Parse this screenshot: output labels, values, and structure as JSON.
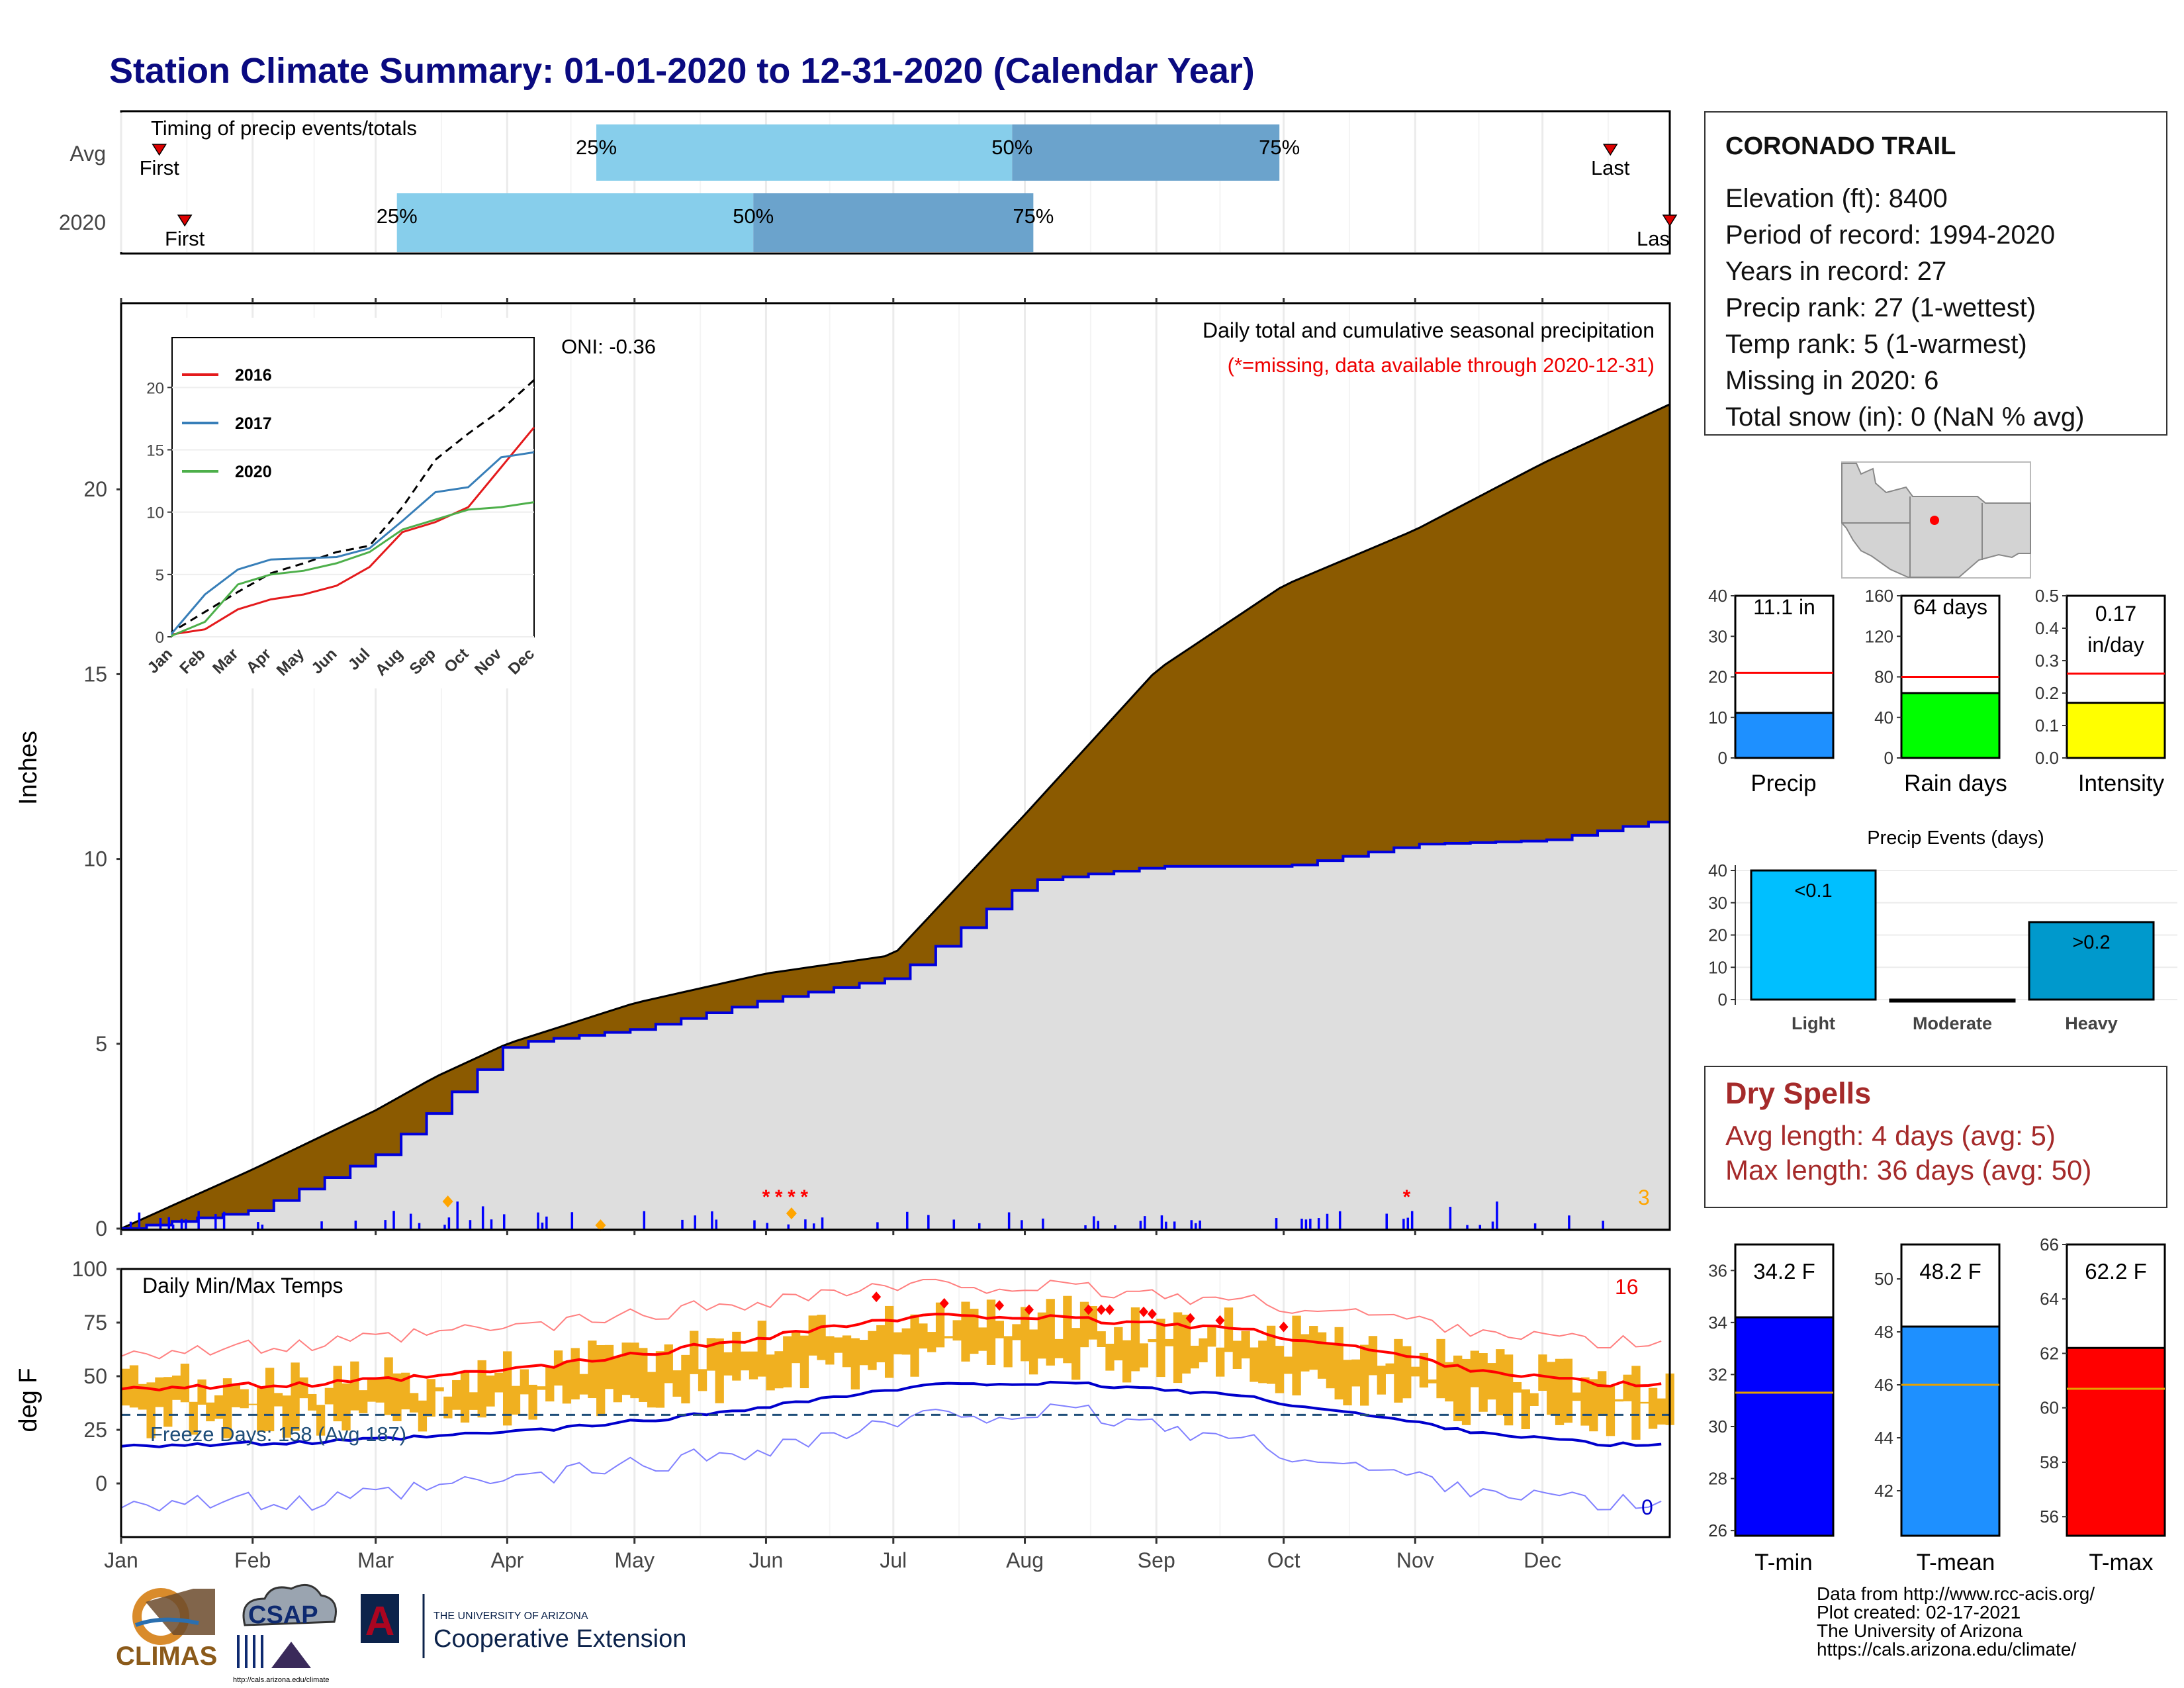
{
  "title": "Station Climate Summary: 01-01-2020 to 12-31-2020 (Calendar Year)",
  "station": {
    "name": "CORONADO TRAIL",
    "rows": [
      "Elevation (ft): 8400",
      "Period of record: 1994-2020",
      "Years in record: 27",
      "Precip rank: 27 (1-wettest)",
      "Temp rank: 5 (1-warmest)",
      "Missing in 2020: 6",
      "Total snow (in): 0 (NaN % avg)"
    ]
  },
  "timing": {
    "title": "Timing of precip events/totals",
    "first_label": "First",
    "last_label": "Last",
    "last_label_clipped": "Las",
    "p25": "25%",
    "p50": "50%",
    "p75": "75%",
    "colors": {
      "light": "#87ceeb",
      "dark": "#6ba3cc",
      "marker": "#dd0000"
    }
  },
  "month_labels": [
    "Jan",
    "Feb",
    "Mar",
    "Apr",
    "May",
    "Jun",
    "Jul",
    "Aug",
    "Sep",
    "Oct",
    "Nov",
    "Dec"
  ],
  "precip_panel": {
    "ylabel": "Inches",
    "subtitle1": "Daily total and cumulative seasonal precipitation",
    "subtitle2": "(*=missing, data available through 2020-12-31)",
    "oni": "ONI: -0.36",
    "corner_count": "3",
    "colors": {
      "avg_fill": "#8b5a00",
      "year_fill": "#dedede",
      "year_line": "#0000dd",
      "daily": "#0000ff",
      "missing": "#ff0000",
      "snow": "#ffa500"
    }
  },
  "inset": {
    "legend": [
      "2016",
      "2017",
      "2020"
    ],
    "colors": {
      "2016": "#e41a1c",
      "2017": "#377eb8",
      "2020": "#4daf4a"
    }
  },
  "temp_panel": {
    "ylabel": "deg F",
    "title": "Daily Min/Max Temps",
    "freeze_text": "Freeze Days: 158 (Avg 187)",
    "count_high": "16",
    "count_low": "0",
    "colors": {
      "bars": "#f0b020",
      "max_avg": "#ff0000",
      "min_avg": "#0000cc",
      "record_max": "#ff8080",
      "record_min": "#8080ff",
      "freeze_line": "#1f4e79"
    }
  },
  "mini_bars": {
    "precip": {
      "label": "Precip",
      "value_text": "11.1 in",
      "value": 11.1,
      "avg": 21,
      "ylim": [
        0,
        40
      ],
      "ticks": [
        "0",
        "10",
        "20",
        "30",
        "40"
      ],
      "color": "#1e90ff"
    },
    "rain_days": {
      "label": "Rain days",
      "value_text": "64 days",
      "value": 64,
      "avg": 80,
      "ylim": [
        0,
        160
      ],
      "ticks": [
        "0",
        "40",
        "80",
        "120",
        "160"
      ],
      "color": "#00ff00"
    },
    "intensity": {
      "label": "Intensity",
      "value_text1": "0.17",
      "value_text2": "in/day",
      "value": 0.17,
      "avg": 0.26,
      "ylim": [
        0,
        0.5
      ],
      "ticks": [
        "0.0",
        "0.1",
        "0.2",
        "0.3",
        "0.4",
        "0.5"
      ],
      "color": "#ffff00"
    }
  },
  "precip_events": {
    "title": "Precip Events (days)",
    "categories": [
      "Light",
      "Moderate",
      "Heavy"
    ],
    "values": [
      40,
      0,
      24
    ],
    "bar_labels": [
      "<0.1",
      "",
      ">0.2"
    ],
    "ticks": [
      "0",
      "10",
      "20",
      "30",
      "40"
    ],
    "colors": [
      "#00bfff",
      "#0080c0",
      "#0099cc"
    ]
  },
  "dry_spells": {
    "title": "Dry Spells",
    "avg": "Avg length: 4 days (avg: 5)",
    "max": "Max length: 36 days (avg: 50)"
  },
  "temp_bars": {
    "tmin": {
      "label": "T-min",
      "value_text": "34.2 F",
      "value": 34.2,
      "avg": 31.3,
      "ticks": [
        "26",
        "28",
        "30",
        "32",
        "34",
        "36"
      ],
      "ylim": [
        25.8,
        37
      ],
      "color": "#0000ff"
    },
    "tmean": {
      "label": "T-mean",
      "value_text": "48.2 F",
      "value": 48.2,
      "avg": 46,
      "ticks": [
        "42",
        "44",
        "46",
        "48",
        "50"
      ],
      "ylim": [
        40.3,
        51.3
      ],
      "color": "#1e90ff"
    },
    "tmax": {
      "label": "T-max",
      "value_text": "62.2 F",
      "value": 62.2,
      "avg": 60.7,
      "ticks": [
        "56",
        "58",
        "60",
        "62",
        "64",
        "66"
      ],
      "ylim": [
        55.3,
        66
      ],
      "color": "#ff0000"
    }
  },
  "footer": [
    "Data from http://www.rcc-acis.org/",
    "Plot created: 02-17-2021",
    "The University of Arizona",
    "https://cals.arizona.edu/climate/"
  ],
  "logos": {
    "climas": "CLIMAS",
    "csap": "CSAP",
    "csap_url": "http://cals.arizona.edu/climate",
    "ua_small": "THE UNIVERSITY OF ARIZONA",
    "ua_big": "Cooperative Extension",
    "ua_letter": "A"
  },
  "chart_data": [
    {
      "type": "bar",
      "title": "Timing of precip events/totals",
      "categories": [
        "Avg",
        "2020"
      ],
      "series": [
        {
          "name": "25%",
          "values": [
            "2020-04-22",
            "2020-03-06"
          ]
        },
        {
          "name": "50%",
          "values": [
            "2020-07-29",
            "2020-05-29"
          ]
        },
        {
          "name": "75%",
          "values": [
            "2020-09-30",
            "2020-08-03"
          ]
        }
      ],
      "first": [
        "2020-01-10",
        "2020-01-16"
      ],
      "last": [
        "2020-12-17",
        "2020-12-31"
      ]
    },
    {
      "type": "area",
      "title": "Daily total and cumulative seasonal precipitation",
      "ylabel": "Inches",
      "ylim": [
        0,
        25
      ],
      "x": [
        "2020-01-01",
        "2020-02-01",
        "2020-03-01",
        "2020-03-15",
        "2020-04-01",
        "2020-05-01",
        "2020-06-01",
        "2020-07-01",
        "2020-08-01",
        "2020-09-01",
        "2020-10-01",
        "2020-11-01",
        "2020-12-01",
        "2020-12-31"
      ],
      "series": [
        {
          "name": "Avg",
          "values": [
            0,
            1.6,
            3.2,
            4.1,
            5.0,
            6.1,
            6.9,
            7.4,
            11.2,
            15.1,
            17.4,
            18.9,
            20.7,
            22.3
          ]
        },
        {
          "name": "2020",
          "values": [
            0,
            0.5,
            2.0,
            3.3,
            5.0,
            5.4,
            6.2,
            6.8,
            9.4,
            9.8,
            9.8,
            10.4,
            10.5,
            11.1
          ]
        }
      ],
      "oni": -0.36
    },
    {
      "type": "line",
      "ylim": [
        0,
        24
      ],
      "x": [
        "Jan",
        "Feb",
        "Mar",
        "Apr",
        "May",
        "Jun",
        "Jul",
        "Aug",
        "Sep",
        "Oct",
        "Nov",
        "Dec"
      ],
      "series": [
        {
          "values": [
            0.4,
            2.0,
            3.6,
            5.1,
            5.9,
            6.8,
            7.3,
            10.4,
            14.2,
            16.3,
            18.2,
            20.6
          ]
        },
        {
          "name": "2016",
          "values": [
            0.2,
            0.6,
            2.2,
            3.0,
            3.4,
            4.1,
            5.6,
            8.4,
            9.2,
            10.4,
            13.6,
            16.8
          ]
        },
        {
          "name": "2017",
          "values": [
            0.3,
            3.4,
            5.4,
            6.2,
            6.3,
            6.4,
            7.1,
            9.3,
            11.6,
            12.0,
            14.4,
            14.8
          ]
        },
        {
          "name": "2020",
          "values": [
            0.1,
            1.2,
            4.2,
            5.0,
            5.3,
            5.9,
            6.8,
            8.6,
            9.4,
            10.2,
            10.4,
            10.8
          ]
        }
      ]
    },
    {
      "type": "line",
      "title": "Daily Min/Max Temps",
      "ylabel": "deg F",
      "ylim": [
        -25,
        100
      ],
      "x": [
        "Jan",
        "Feb",
        "Mar",
        "Apr",
        "May",
        "Jun",
        "Jul",
        "Aug",
        "Sep",
        "Oct",
        "Nov",
        "Dec"
      ],
      "series": [
        {
          "name": "avg max",
          "values": [
            45,
            46,
            50,
            56,
            64,
            73,
            79,
            76,
            73,
            64,
            53,
            46
          ]
        },
        {
          "name": "avg min",
          "values": [
            18,
            19,
            22,
            26,
            32,
            40,
            47,
            46,
            42,
            33,
            24,
            18
          ]
        },
        {
          "name": "record max",
          "values": [
            62,
            64,
            70,
            75,
            82,
            89,
            93,
            90,
            86,
            80,
            72,
            65
          ]
        },
        {
          "name": "record min",
          "values": [
            -8,
            -10,
            -2,
            5,
            12,
            22,
            33,
            32,
            22,
            8,
            -2,
            -10
          ]
        }
      ],
      "freeze_days": 158,
      "freeze_days_avg": 187
    },
    {
      "type": "bar",
      "title": "Precip Events (days)",
      "categories": [
        "Light",
        "Moderate",
        "Heavy"
      ],
      "values": [
        40,
        0,
        24
      ]
    }
  ]
}
